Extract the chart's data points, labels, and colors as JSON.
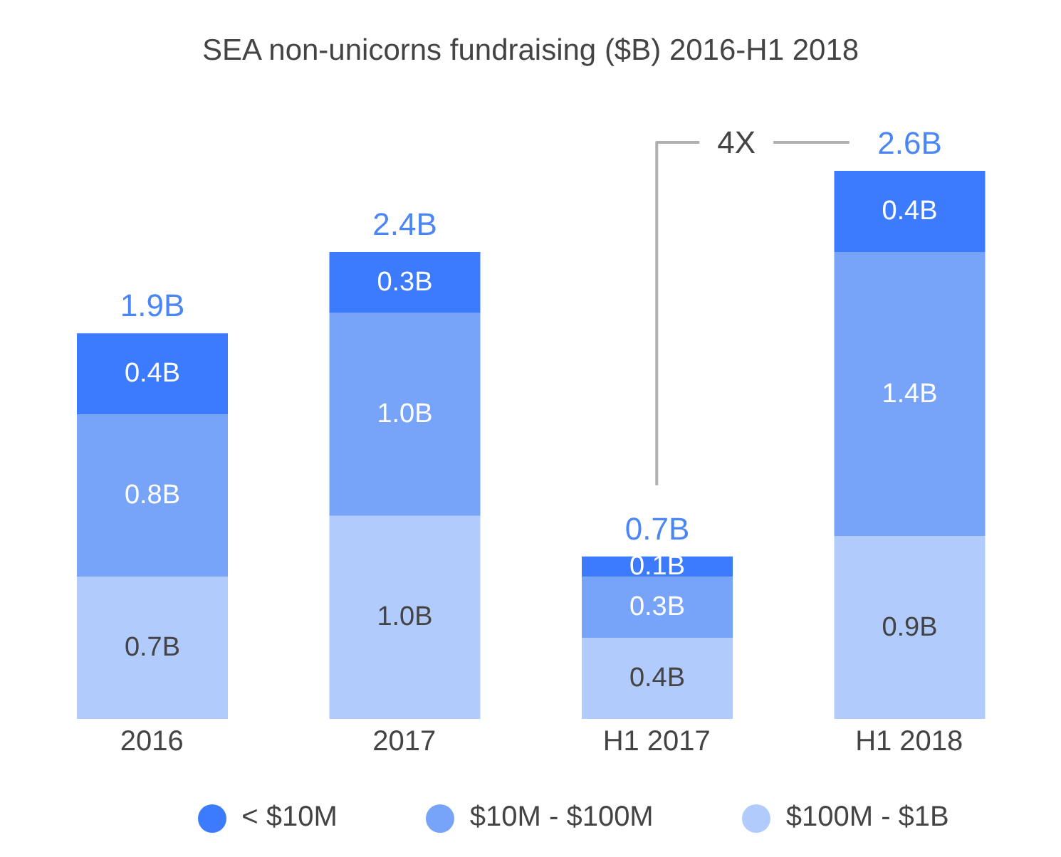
{
  "chart_data": {
    "type": "bar",
    "title": "SEA non-unicorns fundraising ($B) 2016-H1 2018",
    "categories": [
      "2016",
      "2017",
      "H1 2017",
      "H1 2018"
    ],
    "stacked": true,
    "series": [
      {
        "name": "$100M - $1B",
        "color": "#b2cbfd",
        "values": [
          0.7,
          1.0,
          0.4,
          0.9
        ],
        "value_labels": [
          "0.7B",
          "1.0B",
          "0.4B",
          "0.9B"
        ]
      },
      {
        "name": "$10M - $100M",
        "color": "#77a4f9",
        "values": [
          0.8,
          1.0,
          0.3,
          1.4
        ],
        "value_labels": [
          "0.8B",
          "1.0B",
          "0.3B",
          "1.4B"
        ]
      },
      {
        "name": "< $10M",
        "color": "#3d7bfe",
        "values": [
          0.4,
          0.3,
          0.1,
          0.4
        ],
        "value_labels": [
          "0.4B",
          "0.3B",
          "0.1B",
          "0.4B"
        ]
      }
    ],
    "totals": [
      "1.9B",
      "2.4B",
      "0.7B",
      "2.6B"
    ],
    "annotations": [
      "4X"
    ],
    "legend": "bottom"
  }
}
